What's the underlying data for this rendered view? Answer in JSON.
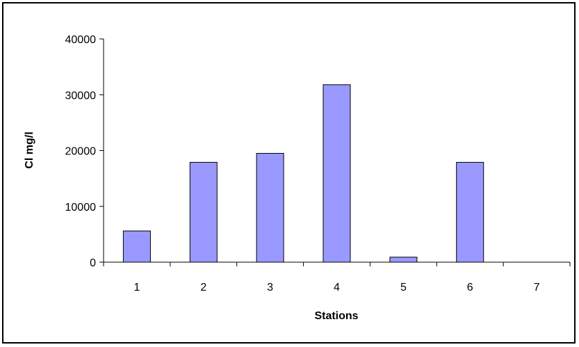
{
  "chart_data": {
    "type": "bar",
    "title": "",
    "xlabel": "Stations",
    "ylabel": "Cl mg/l",
    "categories": [
      "1",
      "2",
      "3",
      "4",
      "5",
      "6",
      "7"
    ],
    "values": [
      5600,
      17900,
      19500,
      31800,
      900,
      17900,
      0
    ],
    "ylim": [
      0,
      40000
    ],
    "yticks": [
      "0",
      "10000",
      "20000",
      "30000",
      "40000"
    ],
    "bar_color": "#9999ff",
    "bar_edge_color": "#000000",
    "grid": false,
    "legend": "none"
  }
}
